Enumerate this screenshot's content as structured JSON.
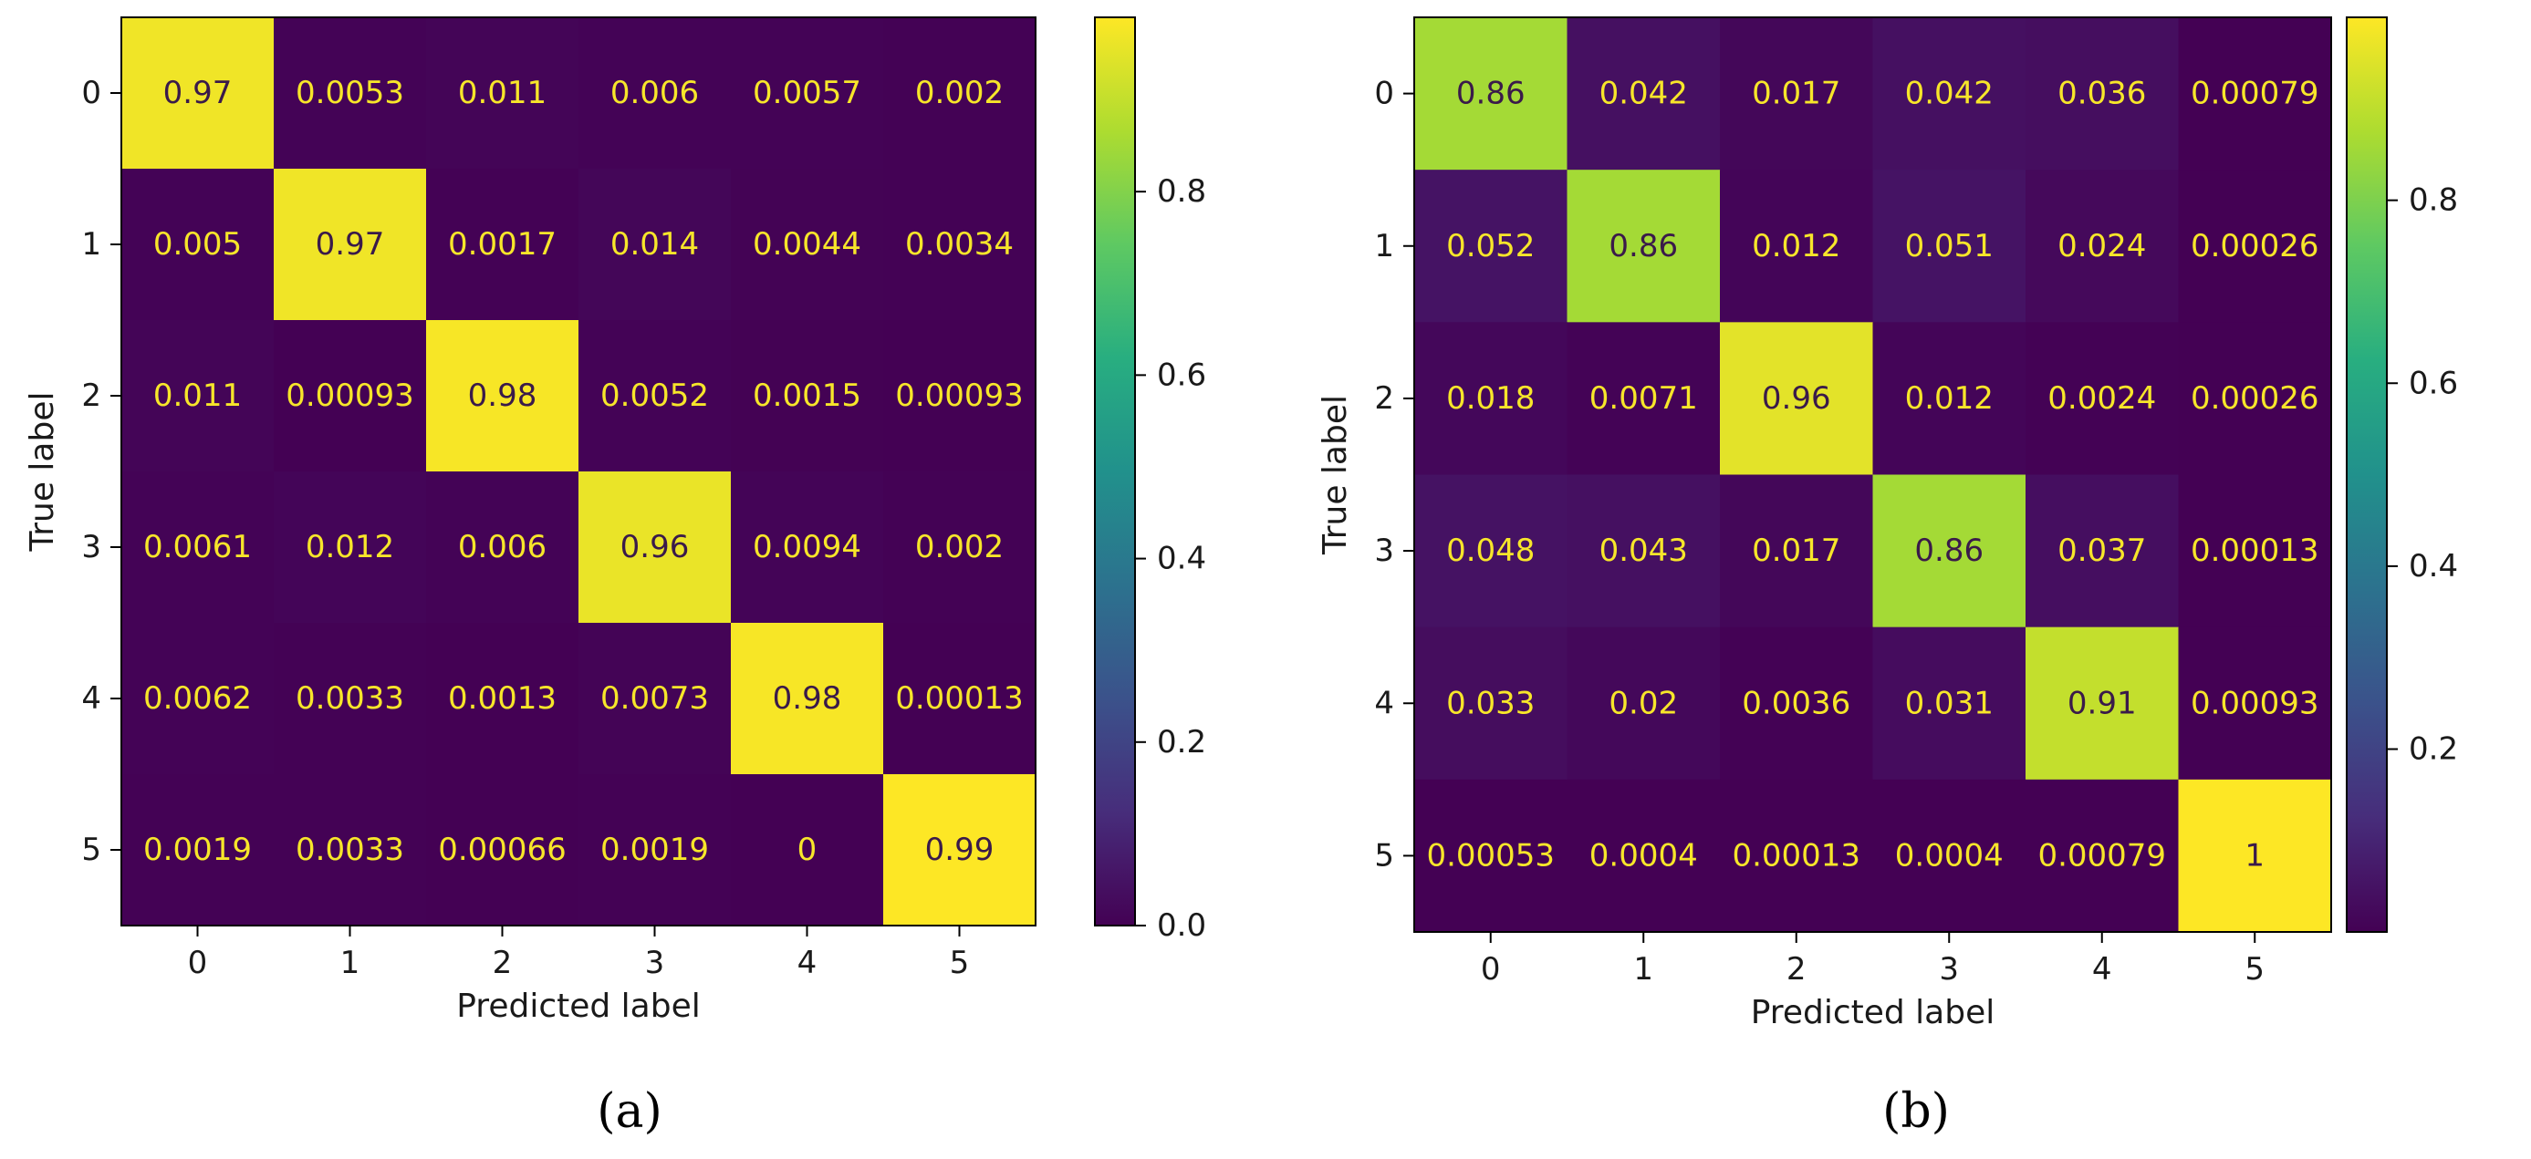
{
  "figure_labels": [
    "(a)",
    "(b)"
  ],
  "chart_data": [
    {
      "type": "heatmap",
      "title": "",
      "xlabel": "Predicted label",
      "ylabel": "True label",
      "x_ticks": [
        "0",
        "1",
        "2",
        "3",
        "4",
        "5"
      ],
      "y_ticks": [
        "0",
        "1",
        "2",
        "3",
        "4",
        "5"
      ],
      "colormap": "viridis",
      "color_range": [
        0,
        0.99
      ],
      "colorbar_ticks": [
        0.0,
        0.2,
        0.4,
        0.6,
        0.8
      ],
      "colorbar_tick_labels": [
        "0.0",
        "0.2",
        "0.4",
        "0.6",
        "0.8"
      ],
      "values": [
        [
          0.97,
          0.0053,
          0.011,
          0.006,
          0.0057,
          0.002
        ],
        [
          0.005,
          0.97,
          0.0017,
          0.014,
          0.0044,
          0.0034
        ],
        [
          0.011,
          0.00093,
          0.98,
          0.0052,
          0.0015,
          0.00093
        ],
        [
          0.0061,
          0.012,
          0.006,
          0.96,
          0.0094,
          0.002
        ],
        [
          0.0062,
          0.0033,
          0.0013,
          0.0073,
          0.98,
          0.00013
        ],
        [
          0.0019,
          0.0033,
          0.00066,
          0.0019,
          0,
          0.99
        ]
      ],
      "value_labels": [
        [
          "0.97",
          "0.0053",
          "0.011",
          "0.006",
          "0.0057",
          "0.002"
        ],
        [
          "0.005",
          "0.97",
          "0.0017",
          "0.014",
          "0.0044",
          "0.0034"
        ],
        [
          "0.011",
          "0.00093",
          "0.98",
          "0.0052",
          "0.0015",
          "0.00093"
        ],
        [
          "0.0061",
          "0.012",
          "0.006",
          "0.96",
          "0.0094",
          "0.002"
        ],
        [
          "0.0062",
          "0.0033",
          "0.0013",
          "0.0073",
          "0.98",
          "0.00013"
        ],
        [
          "0.0019",
          "0.0033",
          "0.00066",
          "0.0019",
          "0",
          "0.99"
        ]
      ]
    },
    {
      "type": "heatmap",
      "title": "",
      "xlabel": "Predicted label",
      "ylabel": "True label",
      "x_ticks": [
        "0",
        "1",
        "2",
        "3",
        "4",
        "5"
      ],
      "y_ticks": [
        "0",
        "1",
        "2",
        "3",
        "4",
        "5"
      ],
      "colormap": "viridis",
      "color_range": [
        0.00013,
        1
      ],
      "colorbar_ticks": [
        0.2,
        0.4,
        0.6,
        0.8
      ],
      "colorbar_tick_labels": [
        "0.2",
        "0.4",
        "0.6",
        "0.8"
      ],
      "values": [
        [
          0.86,
          0.042,
          0.017,
          0.042,
          0.036,
          0.00079
        ],
        [
          0.052,
          0.86,
          0.012,
          0.051,
          0.024,
          0.00026
        ],
        [
          0.018,
          0.0071,
          0.96,
          0.012,
          0.0024,
          0.00026
        ],
        [
          0.048,
          0.043,
          0.017,
          0.86,
          0.037,
          0.00013
        ],
        [
          0.033,
          0.02,
          0.0036,
          0.031,
          0.91,
          0.00093
        ],
        [
          0.00053,
          0.0004,
          0.00013,
          0.0004,
          0.00079,
          1
        ]
      ],
      "value_labels": [
        [
          "0.86",
          "0.042",
          "0.017",
          "0.042",
          "0.036",
          "0.00079"
        ],
        [
          "0.052",
          "0.86",
          "0.012",
          "0.051",
          "0.024",
          "0.00026"
        ],
        [
          "0.018",
          "0.0071",
          "0.96",
          "0.012",
          "0.0024",
          "0.00026"
        ],
        [
          "0.048",
          "0.043",
          "0.017",
          "0.86",
          "0.037",
          "0.00013"
        ],
        [
          "0.033",
          "0.02",
          "0.0036",
          "0.031",
          "0.91",
          "0.00093"
        ],
        [
          "0.00053",
          "0.0004",
          "0.00013",
          "0.0004",
          "0.00079",
          "1"
        ]
      ]
    }
  ]
}
